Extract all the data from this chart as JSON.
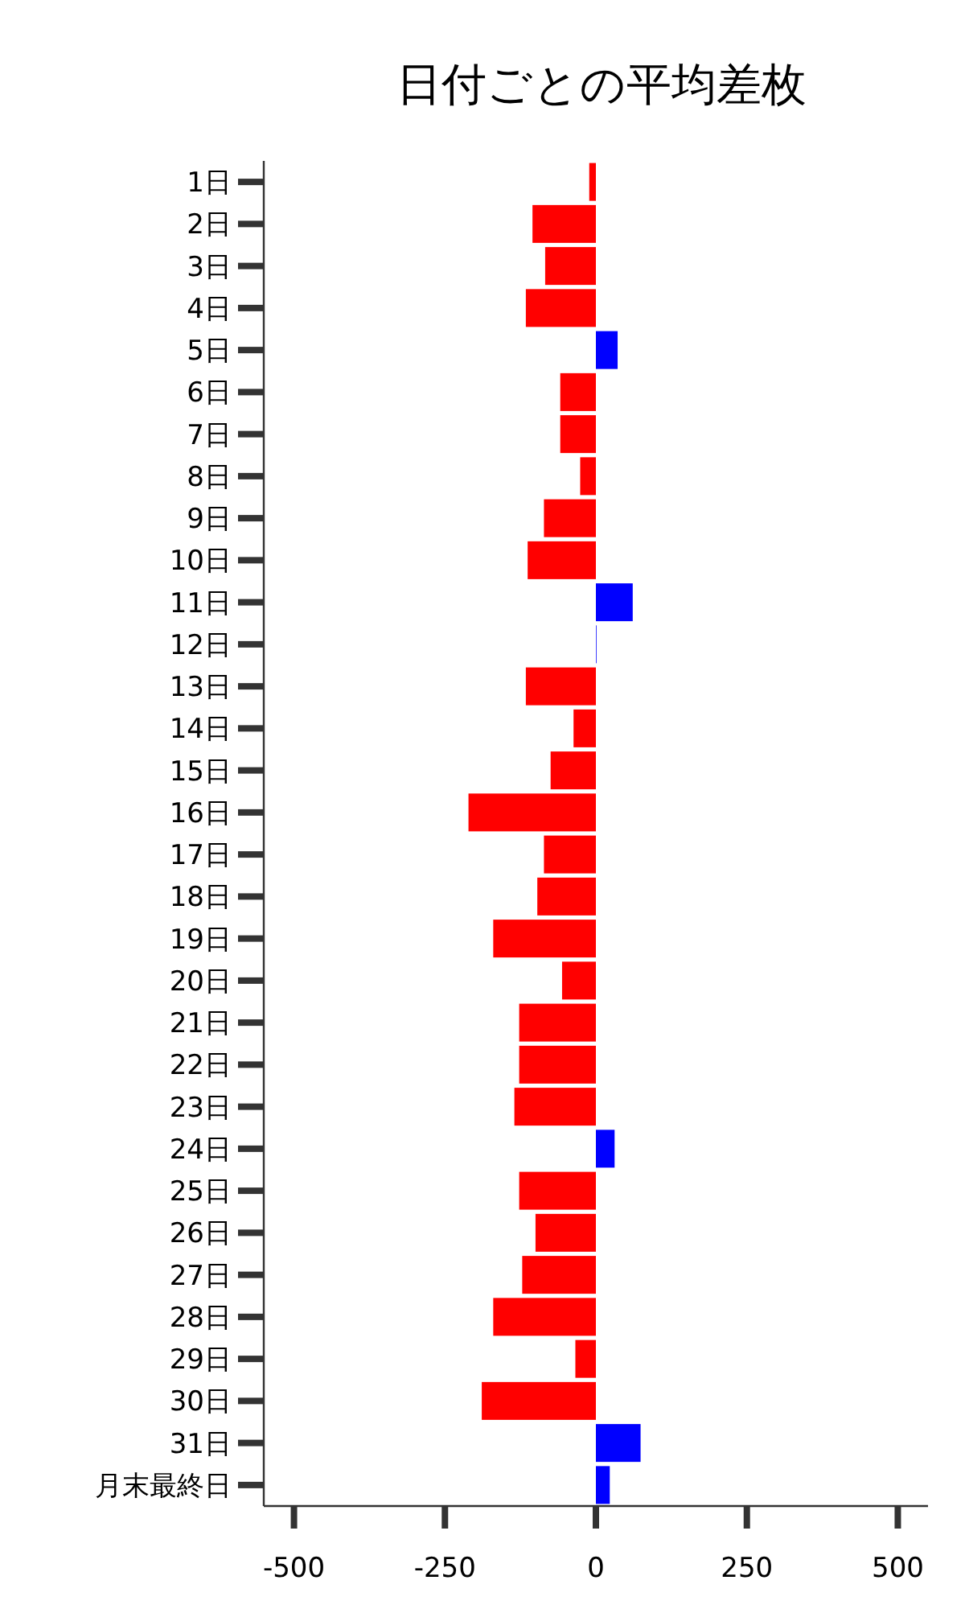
{
  "chart_data": {
    "type": "bar",
    "orientation": "horizontal",
    "title": "日付ごとの平均差枚",
    "categories": [
      "1日",
      "2日",
      "3日",
      "4日",
      "5日",
      "6日",
      "7日",
      "8日",
      "9日",
      "10日",
      "11日",
      "12日",
      "13日",
      "14日",
      "15日",
      "16日",
      "17日",
      "18日",
      "19日",
      "20日",
      "21日",
      "22日",
      "23日",
      "24日",
      "25日",
      "26日",
      "27日",
      "28日",
      "29日",
      "30日",
      "31日",
      "月末最終日"
    ],
    "values": [
      -11,
      -105,
      -84,
      -116,
      36,
      -59,
      -59,
      -26,
      -86,
      -113,
      61,
      1,
      -116,
      -37,
      -75,
      -211,
      -86,
      -97,
      -170,
      -56,
      -127,
      -127,
      -135,
      31,
      -127,
      -100,
      -122,
      -170,
      -34,
      -189,
      74,
      23
    ],
    "colors": [
      "#ff0000",
      "#ff0000",
      "#ff0000",
      "#ff0000",
      "#0000ff",
      "#ff0000",
      "#ff0000",
      "#ff0000",
      "#ff0000",
      "#ff0000",
      "#0000ff",
      "#0000ff",
      "#ff0000",
      "#ff0000",
      "#ff0000",
      "#ff0000",
      "#ff0000",
      "#ff0000",
      "#ff0000",
      "#ff0000",
      "#ff0000",
      "#ff0000",
      "#ff0000",
      "#0000ff",
      "#ff0000",
      "#ff0000",
      "#ff0000",
      "#ff0000",
      "#ff0000",
      "#ff0000",
      "#0000ff",
      "#0000ff"
    ],
    "xlim": [
      -550,
      550
    ],
    "xticks": [
      -500,
      -250,
      0,
      250,
      500
    ],
    "grid": false
  }
}
